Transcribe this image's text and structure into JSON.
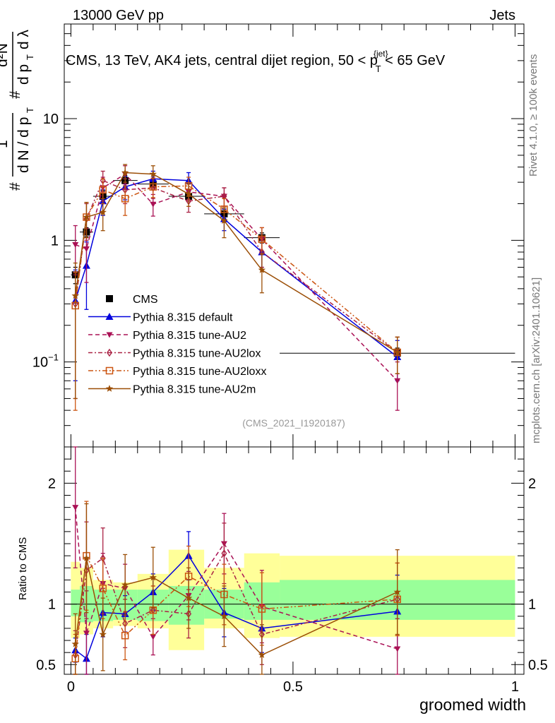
{
  "header": {
    "energy_label": "13000 GeV pp",
    "category_label": "Jets",
    "rivet_label": "Rivet 4.1.0, ≥ 100k events",
    "mcplots_label": "mcplots.cern.ch [arXiv:2401.10621]",
    "analysis_id": "(CMS_2021_I1920187)"
  },
  "chart_data": [
    {
      "type": "line",
      "panel": "main",
      "title_main": "CMS, 13 TeV, AK4 jets, central dijet region, 50 < p",
      "title_sup": "{jet}",
      "title_sub": "T",
      "title_end": " < 65 GeV",
      "ylabel": "1/N dN/dλ  (#  1/(dN/dp_T)  # d²N/(dp_T dλ))",
      "yscale": "log",
      "ylim": [
        0.02,
        60
      ],
      "xlim": [
        -0.015,
        1.02
      ],
      "yticks": [
        {
          "value": 0.1,
          "base": "10",
          "exp": "−1"
        },
        {
          "value": 1,
          "label": "1"
        },
        {
          "value": 10,
          "label": "10"
        }
      ],
      "bin_edges": [
        0,
        0.02,
        0.05,
        0.095,
        0.15,
        0.22,
        0.3,
        0.39,
        0.47,
        1.0
      ],
      "x": [
        0.01,
        0.035,
        0.072,
        0.122,
        0.185,
        0.265,
        0.345,
        0.43,
        0.735
      ],
      "series": [
        {
          "name": "CMS",
          "color": "#000000",
          "marker": "square",
          "line": "none",
          "values": [
            0.52,
            1.17,
            2.3,
            3.1,
            2.9,
            2.3,
            1.65,
            1.05,
            0.118
          ],
          "err": [
            0.08,
            0.1,
            0.25,
            0.3,
            0.3,
            0.2,
            0.15,
            0.1,
            0.012
          ]
        },
        {
          "name": "Pythia 8.315 default",
          "color": "#0000dd",
          "marker": "triangle-up",
          "line": "solid",
          "values": [
            0.32,
            0.62,
            2.1,
            2.75,
            3.2,
            3.1,
            1.5,
            0.8,
            0.11
          ],
          "err": [
            0.25,
            0.35,
            0.5,
            0.6,
            0.5,
            0.5,
            0.3,
            0.2,
            0.04
          ]
        },
        {
          "name": "Pythia 8.315 tune-AU2",
          "color": "#aa1155",
          "marker": "triangle-down",
          "line": "dashed",
          "values": [
            0.92,
            0.85,
            2.7,
            3.5,
            1.98,
            2.5,
            2.3,
            1.02,
            0.07
          ],
          "err": [
            0.4,
            0.4,
            0.6,
            0.6,
            0.4,
            0.4,
            0.4,
            0.25,
            0.03
          ]
        },
        {
          "name": "Pythia 8.315 tune-AU2lox",
          "color": "#aa2244",
          "marker": "diamond",
          "line": "dashdot",
          "values": [
            0.3,
            1.5,
            3.1,
            2.6,
            2.7,
            2.1,
            2.3,
            0.8,
            0.12
          ],
          "err": [
            0.25,
            0.5,
            0.6,
            0.6,
            0.5,
            0.4,
            0.4,
            0.2,
            0.04
          ]
        },
        {
          "name": "Pythia 8.315 tune-AU2loxx",
          "color": "#cc5511",
          "marker": "square-open",
          "line": "dashdotdot",
          "values": [
            0.29,
            1.55,
            2.6,
            2.2,
            2.75,
            2.8,
            1.8,
            1.02,
            0.12
          ],
          "err": [
            0.25,
            0.5,
            0.6,
            0.6,
            0.5,
            0.5,
            0.4,
            0.25,
            0.04
          ]
        },
        {
          "name": "Pythia 8.315 tune-AU2m",
          "color": "#9b4e06",
          "marker": "star",
          "line": "solid",
          "values": [
            0.35,
            1.55,
            1.7,
            3.6,
            3.5,
            2.4,
            1.45,
            0.57,
            0.12
          ],
          "err": [
            0.3,
            0.5,
            0.5,
            0.6,
            0.6,
            0.5,
            0.4,
            0.2,
            0.04
          ]
        }
      ]
    },
    {
      "type": "line",
      "panel": "ratio",
      "ylabel": "Ratio to CMS",
      "xlabel": "groomed width",
      "ylim": [
        0.42,
        2.3
      ],
      "xlim": [
        -0.015,
        1.02
      ],
      "yticks": [
        {
          "value": 0.5,
          "label": "0.5"
        },
        {
          "value": 1,
          "label": "1"
        },
        {
          "value": 2,
          "label": "2"
        }
      ],
      "xticks": [
        {
          "value": 0,
          "label": "0"
        },
        {
          "value": 0.5,
          "label": "0.5"
        },
        {
          "value": 1,
          "label": "1"
        }
      ],
      "bands": {
        "green": {
          "color": "#99ff99",
          "low": [
            0.9,
            0.85,
            0.86,
            0.87,
            0.86,
            0.83,
            0.88,
            0.87,
            0.87
          ],
          "high": [
            1.12,
            1.15,
            1.12,
            1.12,
            1.12,
            1.15,
            1.12,
            1.18,
            1.2
          ]
        },
        "yellow": {
          "color": "#ffff99",
          "low": [
            0.72,
            0.75,
            0.8,
            0.82,
            0.8,
            0.62,
            0.8,
            0.72,
            0.73
          ],
          "high": [
            1.35,
            1.3,
            1.2,
            1.18,
            1.25,
            1.45,
            1.3,
            1.42,
            1.4
          ]
        }
      },
      "x": [
        0.01,
        0.035,
        0.072,
        0.122,
        0.185,
        0.265,
        0.345,
        0.43,
        0.735
      ],
      "series": [
        {
          "name": "Pythia 8.315 default",
          "color": "#0000dd",
          "marker": "triangle-up",
          "line": "solid",
          "values": [
            0.62,
            0.55,
            0.93,
            0.92,
            1.1,
            1.4,
            0.93,
            0.8,
            0.94
          ],
          "err": [
            0.1,
            0.2,
            0.2,
            0.15,
            0.15,
            0.2,
            0.2,
            0.2,
            0.3
          ]
        },
        {
          "name": "Pythia 8.315 tune-AU2",
          "color": "#aa1155",
          "marker": "triangle-down",
          "line": "dashed",
          "values": [
            1.8,
            0.76,
            1.17,
            1.13,
            0.73,
            1.07,
            1.5,
            0.98,
            0.63
          ],
          "err": [
            0.5,
            0.35,
            0.25,
            0.2,
            0.15,
            0.2,
            0.25,
            0.3,
            0.25
          ]
        },
        {
          "name": "Pythia 8.315 tune-AU2lox",
          "color": "#aa2244",
          "marker": "diamond",
          "line": "dashdot",
          "values": [
            0.58,
            1.28,
            1.38,
            0.84,
            0.95,
            0.92,
            1.42,
            0.75,
            1.04
          ],
          "err": [
            0.2,
            0.4,
            0.25,
            0.2,
            0.2,
            0.2,
            0.25,
            0.25,
            0.3
          ]
        },
        {
          "name": "Pythia 8.315 tune-AU2loxx",
          "color": "#cc5511",
          "marker": "square-open",
          "line": "dashdotdot",
          "values": [
            0.55,
            1.4,
            1.13,
            0.74,
            0.95,
            1.23,
            1.08,
            0.96,
            1.04
          ],
          "err": [
            0.2,
            0.45,
            0.25,
            0.2,
            0.2,
            0.25,
            0.25,
            0.3,
            0.3
          ]
        },
        {
          "name": "Pythia 8.315 tune-AU2m",
          "color": "#9b4e06",
          "marker": "star",
          "line": "solid",
          "values": [
            0.67,
            1.38,
            0.75,
            1.16,
            1.22,
            1.05,
            0.9,
            0.58,
            1.1
          ],
          "err": [
            0.25,
            0.45,
            0.3,
            0.25,
            0.25,
            0.25,
            0.25,
            0.25,
            0.35
          ]
        }
      ]
    }
  ]
}
